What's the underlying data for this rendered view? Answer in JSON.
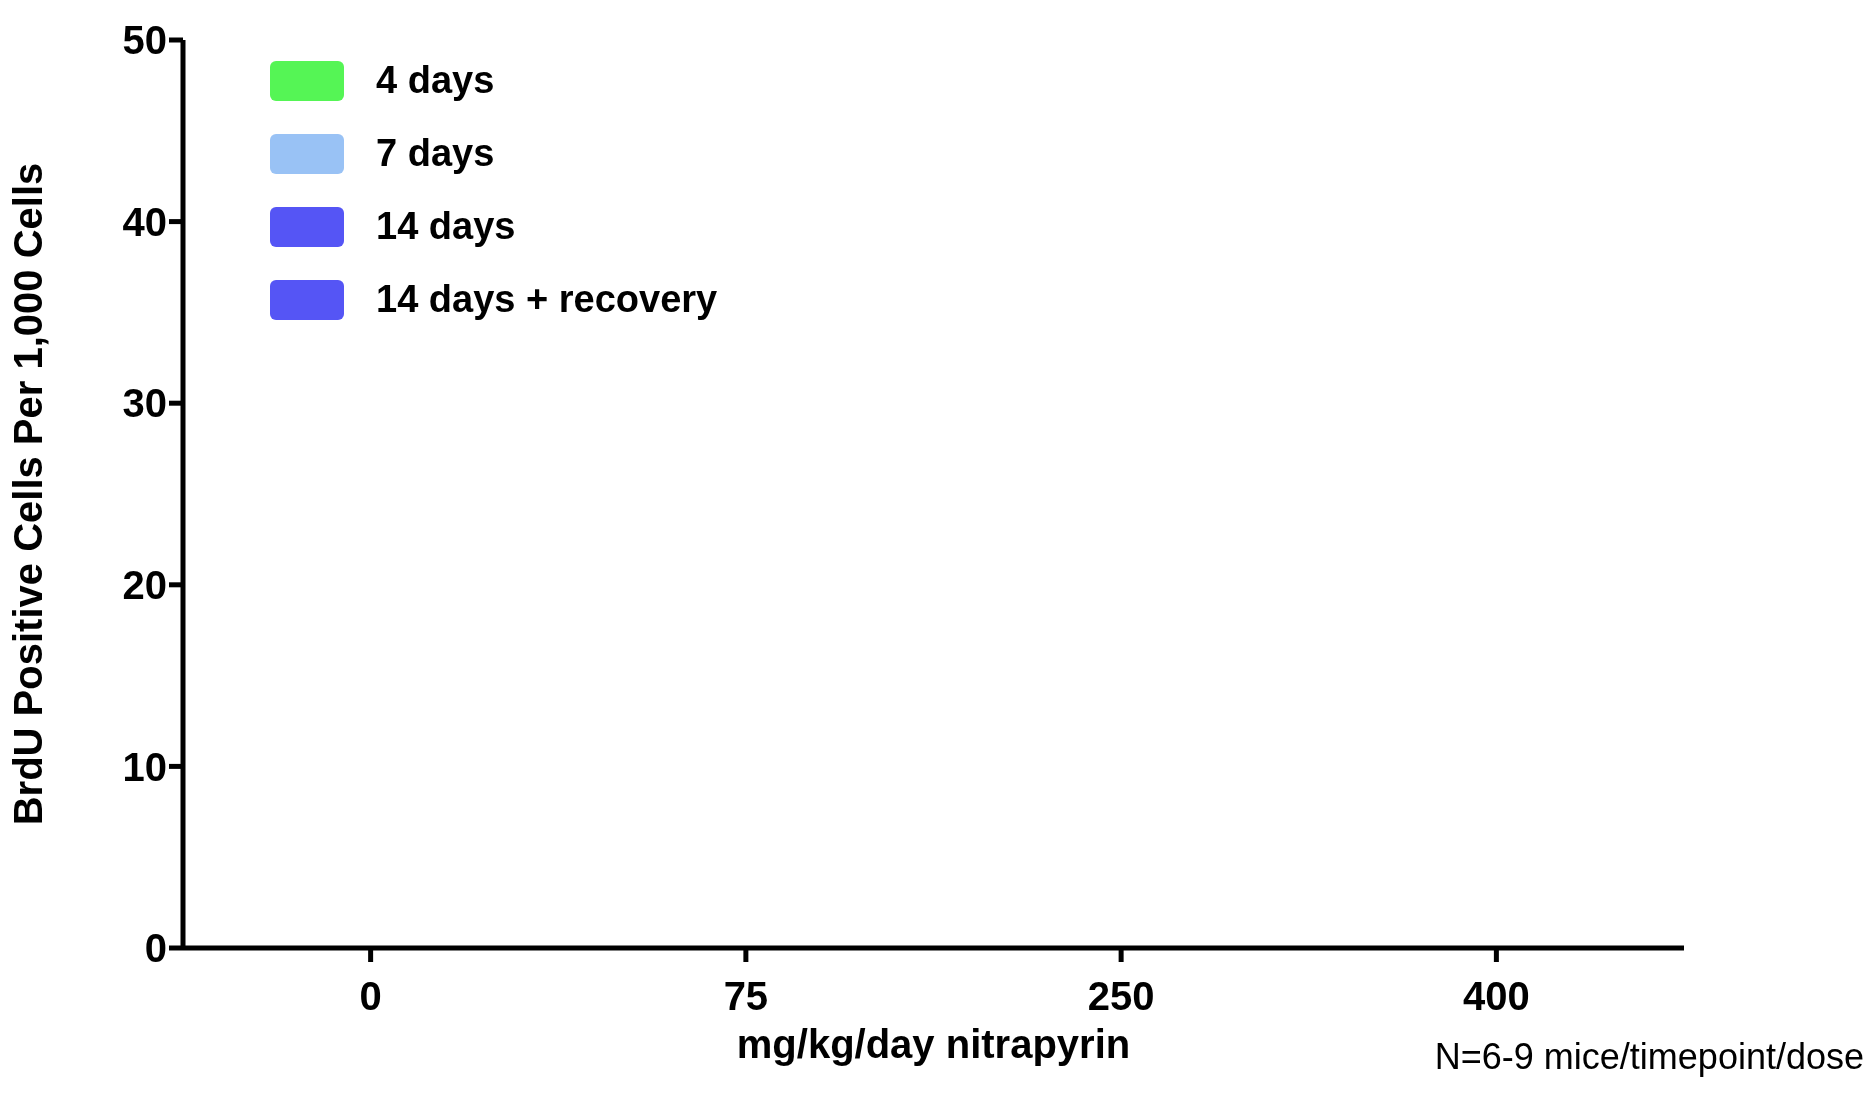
{
  "chart_data": {
    "type": "bar",
    "xlabel": "mg/kg/day nitrapyrin",
    "ylabel": "BrdU Positive Cells Per 1,000 Cells",
    "categories": [
      "0",
      "75",
      "250",
      "400"
    ],
    "series": [
      {
        "name": "4 days",
        "color": "#55f555",
        "values": [
          0,
          0,
          0,
          0
        ]
      },
      {
        "name": "7 days",
        "color": "#99c2f5",
        "values": [
          0,
          0,
          0,
          0
        ]
      },
      {
        "name": "14 days",
        "color": "#5555f5",
        "values": [
          0,
          0,
          0,
          0
        ]
      },
      {
        "name": "14 days + recovery",
        "color": "#5555f5",
        "values": [
          0,
          0,
          0,
          0
        ]
      }
    ],
    "ylim": [
      0,
      50
    ],
    "yticks": [
      0,
      10,
      20,
      30,
      40,
      50
    ],
    "legend": "top left",
    "annotations": [
      "N=6-9 mice/timepoint/dose"
    ]
  }
}
